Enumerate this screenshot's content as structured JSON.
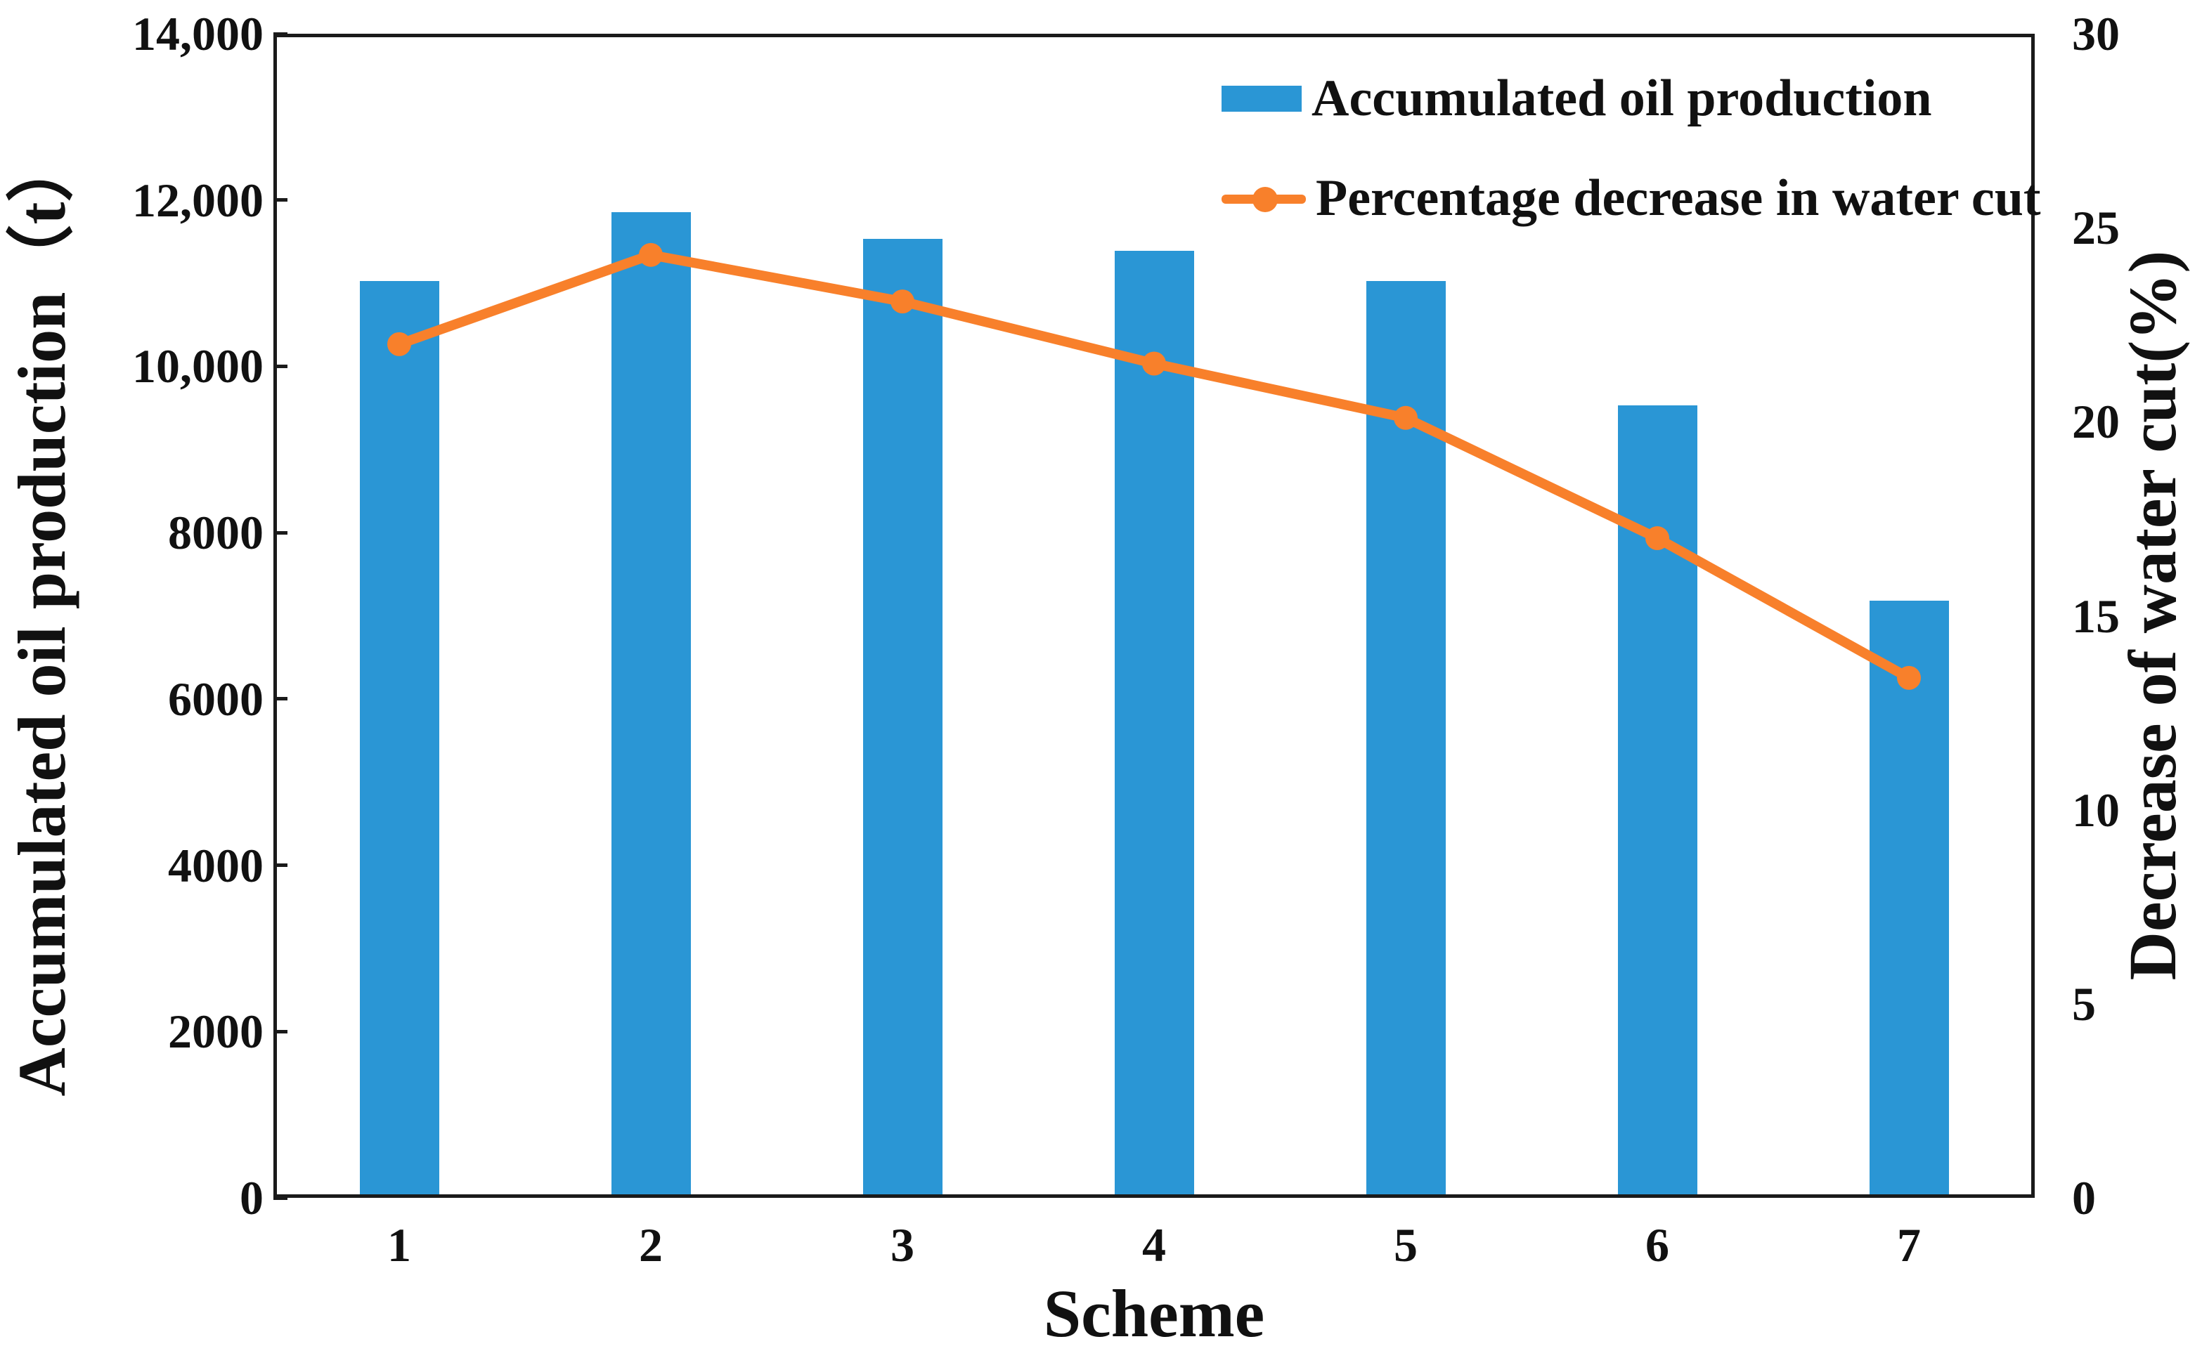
{
  "chart_data": {
    "type": "bar",
    "title": "",
    "categories": [
      "1",
      "2",
      "3",
      "4",
      "5",
      "6",
      "7"
    ],
    "xlabel": "Scheme",
    "axes": {
      "left": {
        "label": "Accumulated oil production（t）",
        "range": [
          0,
          14000
        ],
        "ticks": [
          "0",
          "2000",
          "4000",
          "6000",
          "8000",
          "10,000",
          "12,000",
          "14,000"
        ]
      },
      "right": {
        "label": "Decrease of water cut(%)",
        "range": [
          0,
          30
        ],
        "ticks": [
          "0",
          "5",
          "10",
          "15",
          "20",
          "25",
          "30"
        ]
      }
    },
    "series": [
      {
        "name": "Accumulated oil production",
        "type": "bar",
        "axis": "left",
        "color": "#2a96d5",
        "values": [
          11030,
          11855,
          11530,
          11390,
          11030,
          9530,
          7180
        ]
      },
      {
        "name": "Percentage decrease in water cut",
        "type": "line",
        "axis": "right",
        "color": "#f8802b",
        "marker": "circle",
        "values": [
          22.0,
          24.3,
          23.1,
          21.5,
          20.1,
          17.0,
          13.4
        ]
      }
    ],
    "grid": false,
    "legend_position": "top-right-inside",
    "colors": {
      "bar": "#2a96d5",
      "line": "#f8802b",
      "axis": "#1a1a1a",
      "text": "#111111"
    }
  }
}
